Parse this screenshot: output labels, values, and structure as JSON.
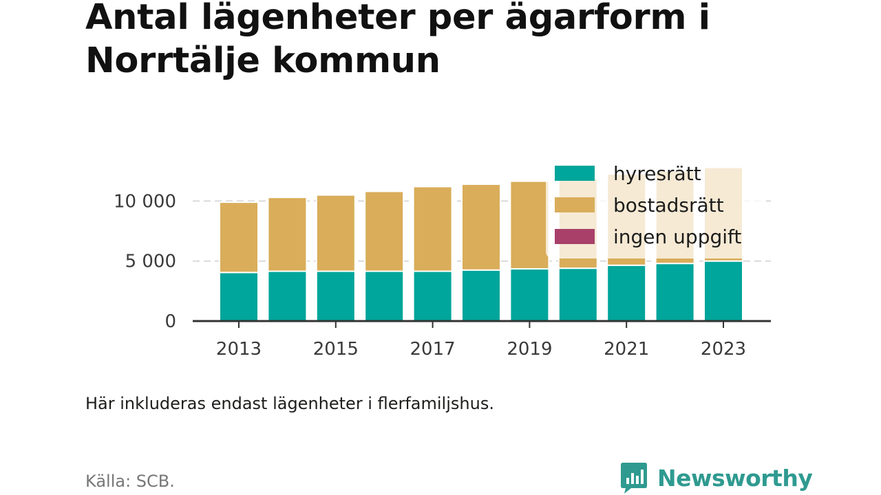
{
  "title": "Antal lägenheter per ägarform i Norrtälje kommun",
  "caption": "Här inkluderas endast lägenheter i flerfamiljshus.",
  "source": "Källa: SCB.",
  "brand": {
    "name": "Newsworthy",
    "icon": "newsworthy-logo-icon"
  },
  "colors": {
    "hyresratt": "#00a59b",
    "bostadsratt": "#d9ad5a",
    "ingen_uppgift": "#a8406a",
    "grid": "#d9d9d9",
    "axis": "#333333"
  },
  "chart_data": {
    "type": "bar",
    "stacked": true,
    "categories": [
      "2013",
      "2014",
      "2015",
      "2016",
      "2017",
      "2018",
      "2019",
      "2020",
      "2021",
      "2022",
      "2023"
    ],
    "x_tick_labels": [
      "2013",
      "2015",
      "2017",
      "2019",
      "2021",
      "2023"
    ],
    "y_ticks": [
      0,
      5000,
      10000
    ],
    "y_tick_labels": [
      "0",
      "5 000",
      "10 000"
    ],
    "ylim": [
      0,
      13000
    ],
    "grid": true,
    "legend_position": "top-right",
    "series": [
      {
        "name": "hyresrätt",
        "color": "#00a59b",
        "values": [
          4050,
          4150,
          4150,
          4150,
          4150,
          4250,
          4350,
          4400,
          4650,
          4800,
          5000
        ]
      },
      {
        "name": "bostadsrätt",
        "color": "#d9ad5a",
        "values": [
          5850,
          6150,
          6350,
          6650,
          7050,
          7150,
          7300,
          7500,
          7600,
          7700,
          7800
        ]
      },
      {
        "name": "ingen uppgift",
        "color": "#a8406a",
        "values": [
          0,
          0,
          0,
          0,
          0,
          0,
          0,
          0,
          0,
          0,
          0
        ]
      }
    ]
  }
}
